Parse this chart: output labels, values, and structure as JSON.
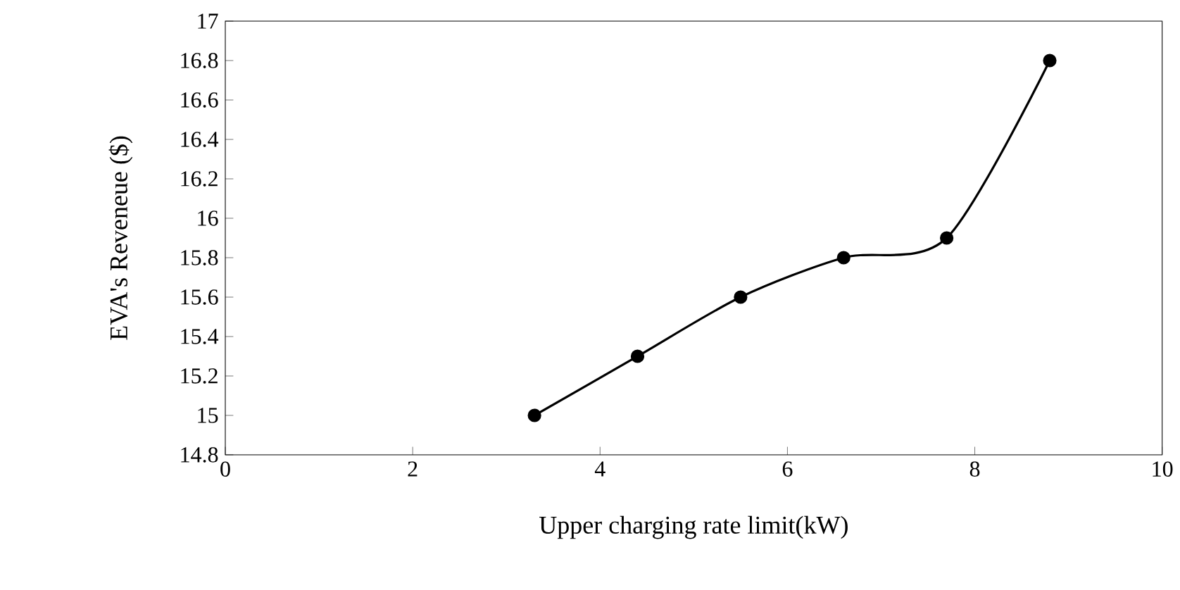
{
  "chart_data": {
    "type": "line",
    "xlabel": "Upper charging rate limit(kW)",
    "ylabel": "EVA's Reveneue ($)",
    "x": [
      3.3,
      4.4,
      5.5,
      6.6,
      7.7,
      8.8
    ],
    "values": [
      15.0,
      15.3,
      15.6,
      15.8,
      15.9,
      16.8
    ],
    "color": "#000000",
    "marker": "circle",
    "line_style": "solid",
    "xlim": [
      0,
      10
    ],
    "xticks": [
      0,
      2,
      4,
      6,
      8,
      10
    ],
    "ylim": [
      14.8,
      17
    ],
    "yticks": [
      14.8,
      15,
      15.2,
      15.4,
      15.6,
      15.8,
      16,
      16.2,
      16.4,
      16.6,
      16.8,
      17
    ]
  }
}
